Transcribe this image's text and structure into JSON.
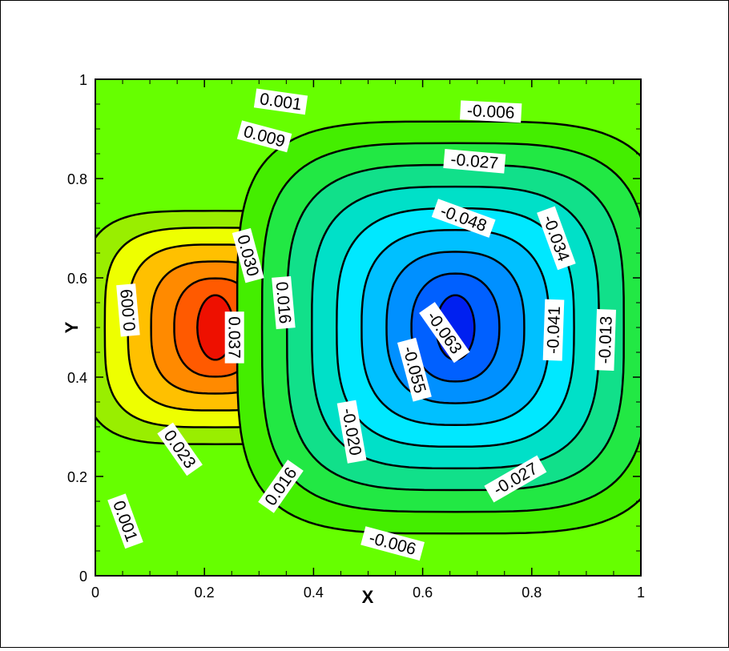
{
  "chart_data": {
    "type": "contour",
    "xlabel": "X",
    "ylabel": "Y",
    "xlim": [
      0,
      1
    ],
    "ylim": [
      0,
      1
    ],
    "x_ticks": [
      "0",
      "0.2",
      "0.4",
      "0.6",
      "0.8",
      "1"
    ],
    "y_ticks": [
      "0",
      "0.2",
      "0.4",
      "0.6",
      "0.8",
      "1"
    ],
    "vortices": [
      {
        "name": "left",
        "center": [
          0.22,
          0.5
        ],
        "levels": [
          0.001,
          0.009,
          0.016,
          0.023,
          0.03,
          0.037
        ],
        "colors": [
          "#99ee00",
          "#eeff00",
          "#ffc000",
          "#ff8a00",
          "#ff5a00",
          "#ee1000"
        ]
      },
      {
        "name": "right",
        "center": [
          0.66,
          0.5
        ],
        "levels": [
          -0.006,
          -0.013,
          -0.02,
          -0.027,
          -0.034,
          -0.041,
          -0.048,
          -0.055,
          -0.063
        ],
        "colors": [
          "#44ee00",
          "#22e844",
          "#11e08a",
          "#00e0c8",
          "#00e8ff",
          "#00c0ff",
          "#0090ff",
          "#0060ff",
          "#0020f0"
        ]
      }
    ],
    "background_color": "#66ff00",
    "contour_labels": [
      {
        "text": "0.001",
        "x": 0.34,
        "y": 0.955,
        "angle": 8
      },
      {
        "text": "0.009",
        "x": 0.31,
        "y": 0.885,
        "angle": 15
      },
      {
        "text": "0.030",
        "x": 0.28,
        "y": 0.645,
        "angle": 75
      },
      {
        "text": "0.016",
        "x": 0.345,
        "y": 0.55,
        "angle": 85
      },
      {
        "text": "0.009",
        "x": 0.06,
        "y": 0.535,
        "angle": -95
      },
      {
        "text": "0.037",
        "x": 0.255,
        "y": 0.48,
        "angle": 90
      },
      {
        "text": "0.023",
        "x": 0.155,
        "y": 0.255,
        "angle": 55
      },
      {
        "text": "0.016",
        "x": 0.34,
        "y": 0.18,
        "angle": -55
      },
      {
        "text": "0.001",
        "x": 0.055,
        "y": 0.11,
        "angle": 70
      },
      {
        "text": "-0.006",
        "x": 0.725,
        "y": 0.935,
        "angle": 3
      },
      {
        "text": "-0.027",
        "x": 0.695,
        "y": 0.835,
        "angle": 5
      },
      {
        "text": "-0.048",
        "x": 0.675,
        "y": 0.72,
        "angle": 20
      },
      {
        "text": "-0.034",
        "x": 0.845,
        "y": 0.68,
        "angle": 70
      },
      {
        "text": "-0.041",
        "x": 0.84,
        "y": 0.495,
        "angle": -88
      },
      {
        "text": "-0.013",
        "x": 0.935,
        "y": 0.475,
        "angle": -88
      },
      {
        "text": "-0.063",
        "x": 0.64,
        "y": 0.49,
        "angle": 55
      },
      {
        "text": "-0.055",
        "x": 0.585,
        "y": 0.415,
        "angle": 75
      },
      {
        "text": "-0.020",
        "x": 0.47,
        "y": 0.29,
        "angle": 80
      },
      {
        "text": "-0.027",
        "x": 0.77,
        "y": 0.195,
        "angle": -30
      },
      {
        "text": "-0.006",
        "x": 0.545,
        "y": 0.065,
        "angle": 15
      }
    ]
  }
}
